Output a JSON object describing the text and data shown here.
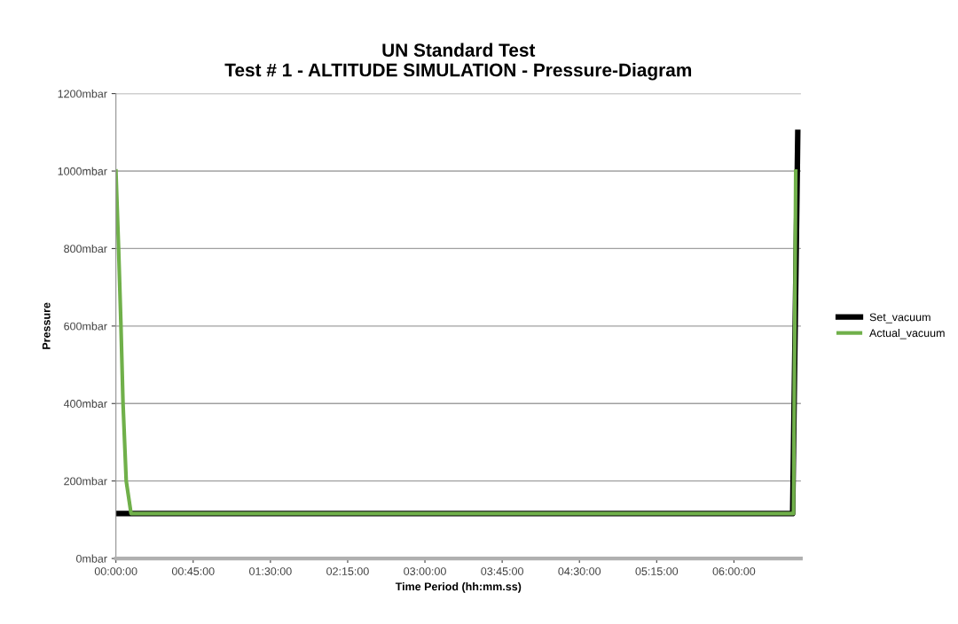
{
  "chart_data": {
    "type": "line",
    "title": "UN Standard Test\nTest # 1 - ALTITUDE SIMULATION - Pressure-Diagram",
    "xlabel": "Time Period (hh:mm.ss)",
    "ylabel": "Pressure",
    "series": [
      {
        "name": "Set_vacuum",
        "color": "#000000",
        "x": [
          0,
          6.57,
          6.62
        ],
        "values": [
          116,
          116,
          1100
        ]
      },
      {
        "name": "Actual_vacuum",
        "color": "#70b04a",
        "x": [
          0,
          0.026,
          0.049,
          0.069,
          0.1,
          0.147,
          6.578,
          6.6
        ],
        "values": [
          1000,
          800,
          600,
          400,
          200,
          116,
          116,
          1000
        ]
      }
    ],
    "xlim": [
      0,
      6.65
    ],
    "xticks": [
      {
        "value": 0,
        "label": "00:00:00"
      },
      {
        "value": 0.75,
        "label": "00:45:00"
      },
      {
        "value": 1.5,
        "label": "01:30:00"
      },
      {
        "value": 2.25,
        "label": "02:15:00"
      },
      {
        "value": 3,
        "label": "03:00:00"
      },
      {
        "value": 3.75,
        "label": "03:45:00"
      },
      {
        "value": 4.5,
        "label": "04:30:00"
      },
      {
        "value": 5.25,
        "label": "05:15:00"
      },
      {
        "value": 6,
        "label": "06:00:00"
      }
    ],
    "ylim": [
      0,
      1200
    ],
    "yticks": [
      {
        "value": 0,
        "label": "0mbar"
      },
      {
        "value": 200,
        "label": "200mbar"
      },
      {
        "value": 400,
        "label": "400mbar"
      },
      {
        "value": 600,
        "label": "600mbar"
      },
      {
        "value": 800,
        "label": "800mbar"
      },
      {
        "value": 1000,
        "label": "1000mbar"
      },
      {
        "value": 1200,
        "label": "1200mbar"
      }
    ],
    "grid": "y",
    "legend": "right",
    "marker": "none",
    "line_style": "solid"
  }
}
